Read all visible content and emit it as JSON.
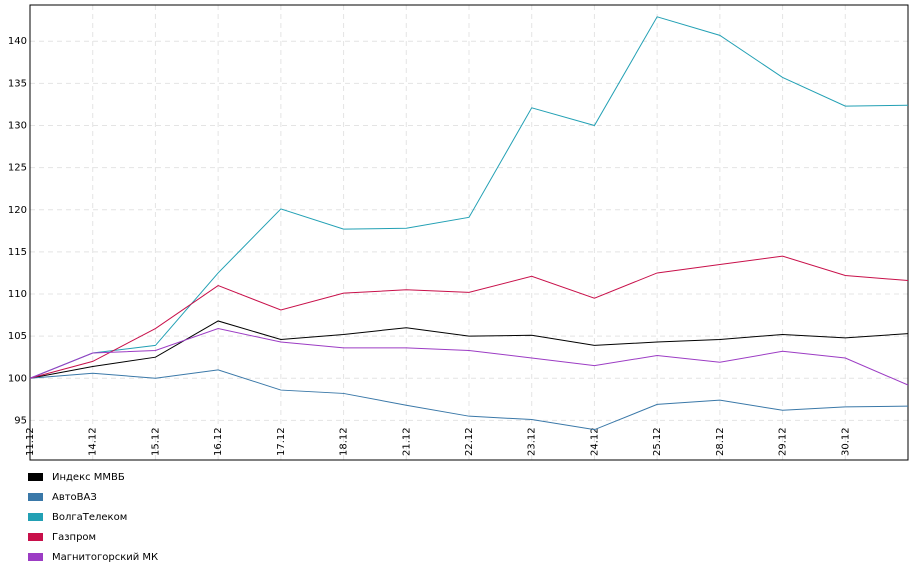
{
  "chart_data": {
    "type": "line",
    "categories": [
      "11.12",
      "14.12",
      "15.12",
      "16.12",
      "17.12",
      "18.12",
      "21.12",
      "22.12",
      "23.12",
      "24.12",
      "25.12",
      "28.12",
      "29.12",
      "30.12",
      null
    ],
    "series": [
      {
        "name": "Индекс ММВБ",
        "color": "#000000",
        "values": [
          100,
          101.4,
          102.5,
          106.8,
          104.6,
          105.2,
          106.0,
          105.0,
          105.1,
          103.9,
          104.3,
          104.6,
          105.2,
          104.8,
          105.3
        ]
      },
      {
        "name": "АвтоВАЗ",
        "color": "#3a78a8",
        "values": [
          100,
          100.6,
          100,
          101,
          98.6,
          98.2,
          96.8,
          95.5,
          95.1,
          93.9,
          96.9,
          97.4,
          96.2,
          96.6,
          96.7
        ]
      },
      {
        "name": "ВолгаТелеком",
        "color": "#22a0b4",
        "values": [
          100,
          103,
          103.9,
          112.5,
          120.1,
          117.7,
          117.8,
          119.1,
          132.1,
          130.0,
          142.9,
          140.7,
          135.7,
          132.3,
          132.4
        ]
      },
      {
        "name": "Газпром",
        "color": "#c8104a",
        "values": [
          100,
          102,
          105.9,
          111,
          108.1,
          110.1,
          110.5,
          110.2,
          112.1,
          109.5,
          112.5,
          113.5,
          114.5,
          112.2,
          111.6
        ]
      },
      {
        "name": "Магнитогорский МК",
        "color": "#9c3cc4",
        "values": [
          100,
          103,
          103.3,
          105.9,
          104.3,
          103.6,
          103.6,
          103.3,
          102.4,
          101.5,
          102.7,
          101.9,
          103.2,
          102.4,
          99.2
        ]
      }
    ],
    "ylim": [
      90.3,
      144.3
    ],
    "yticks": [
      95,
      100,
      105,
      110,
      115,
      120,
      125,
      130,
      135,
      140
    ],
    "grid": true
  }
}
